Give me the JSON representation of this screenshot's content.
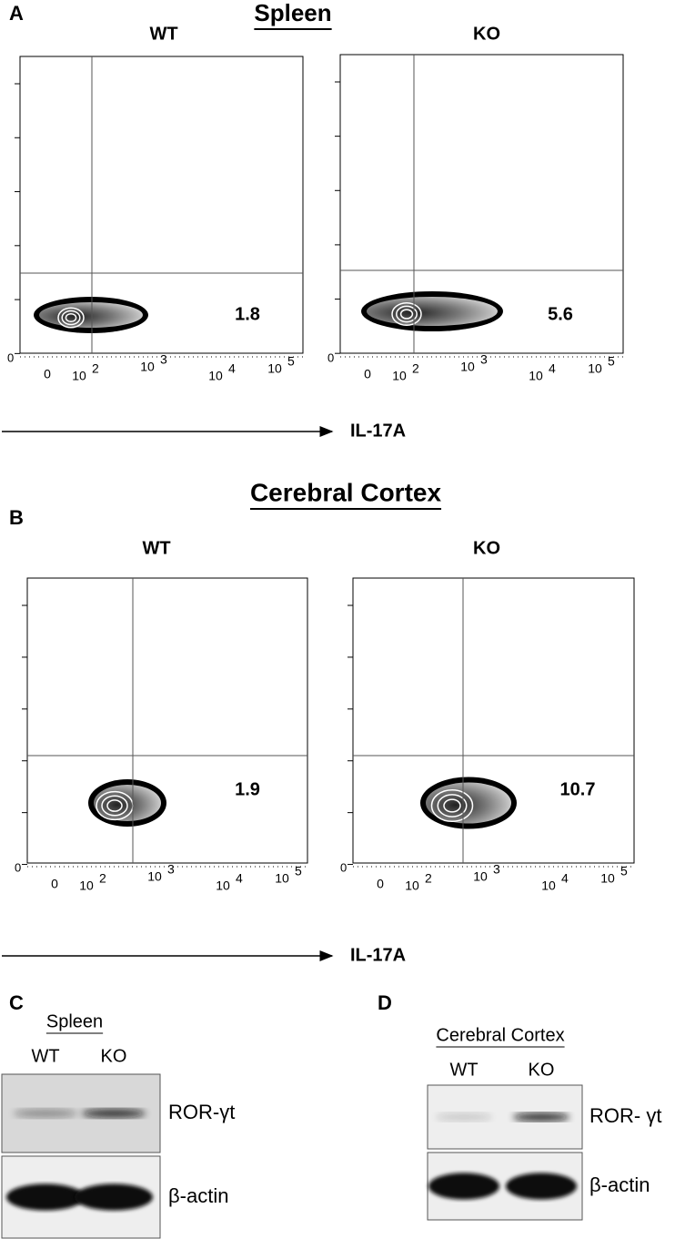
{
  "panels": [
    {
      "letter": "A",
      "title": "Spleen",
      "axis_label": "IL-17A",
      "plots": [
        {
          "label": "WT",
          "value": "1.8"
        },
        {
          "label": "KO",
          "value": "5.6"
        }
      ]
    },
    {
      "letter": "B",
      "title": "Cerebral Cortex",
      "axis_label": "IL-17A",
      "plots": [
        {
          "label": "WT",
          "value": "1.9"
        },
        {
          "label": "KO",
          "value": "10.7"
        }
      ]
    }
  ],
  "axis_ticks": {
    "y_zero": "0",
    "x": [
      {
        "base": "0"
      },
      {
        "base": "10",
        "exp": "2"
      },
      {
        "base": "10",
        "exp": "3"
      },
      {
        "base": "10",
        "exp": "4"
      },
      {
        "base": "10",
        "exp": "5"
      }
    ]
  },
  "blots": [
    {
      "letter": "C",
      "tissue": "Spleen",
      "lanes": [
        "WT",
        "KO"
      ],
      "bands": [
        "ROR-γt",
        "β-actin"
      ]
    },
    {
      "letter": "D",
      "tissue": "Cerebral Cortex",
      "lanes": [
        "WT",
        "KO"
      ],
      "bands": [
        "ROR- γt",
        "β-actin"
      ]
    }
  ]
}
